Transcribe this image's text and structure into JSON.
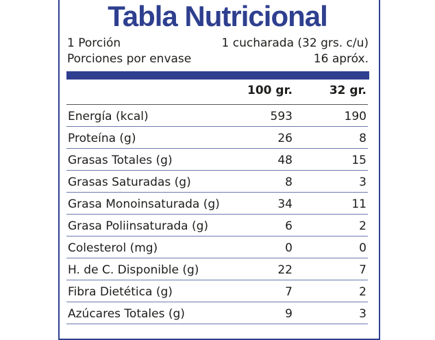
{
  "title": "Tabla Nutricional",
  "serving": {
    "label": "1 Porción",
    "value": "1 cucharada (32 grs. c/u)"
  },
  "servings_per_container": {
    "label": "Porciones por envase",
    "value": "16 apróx."
  },
  "columns": [
    "100 gr.",
    "32 gr."
  ],
  "rows": [
    {
      "label": "Energía (kcal)",
      "v100": "593",
      "v32": "190"
    },
    {
      "label": "Proteína (g)",
      "v100": "26",
      "v32": "8"
    },
    {
      "label": "Grasas Totales (g)",
      "v100": "48",
      "v32": "15"
    },
    {
      "label": "Grasas Saturadas (g)",
      "v100": "8",
      "v32": "3"
    },
    {
      "label": "Grasa Monoinsaturada (g)",
      "v100": "34",
      "v32": "11"
    },
    {
      "label": "Grasa Poliinsaturada (g)",
      "v100": "6",
      "v32": "2"
    },
    {
      "label": "Colesterol (mg)",
      "v100": "0",
      "v32": "0"
    },
    {
      "label": "H. de C. Disponible (g)",
      "v100": "22",
      "v32": "7"
    },
    {
      "label": "Fibra Dietética (g)",
      "v100": "7",
      "v32": "2"
    },
    {
      "label": "Azúcares Totales (g)",
      "v100": "9",
      "v32": "3"
    }
  ],
  "colors": {
    "brand": "#2e3f8f",
    "text": "#1d1d1b"
  }
}
